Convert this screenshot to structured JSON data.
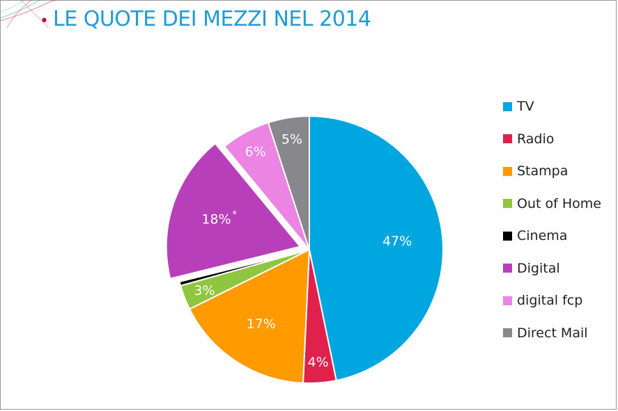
{
  "slide": {
    "title": "LE QUOTE DEI MEZZI NEL 2014"
  },
  "chart_data": {
    "type": "pie",
    "categories": [
      "TV",
      "Radio",
      "Stampa",
      "Out of Home",
      "Cinema",
      "Digital",
      "digital fcp",
      "Direct Mail"
    ],
    "values": [
      47,
      4,
      17,
      3,
      0.5,
      18,
      6,
      5
    ],
    "labels": [
      "47%",
      "4%",
      "17%",
      "3%",
      "",
      "18%",
      "6%",
      "5%"
    ],
    "annotations": {
      "Digital": "*"
    },
    "exploded": [
      "Digital"
    ],
    "colors": [
      "#00a6e0",
      "#e0214c",
      "#ff9a00",
      "#8ec63f",
      "#000000",
      "#b73fba",
      "#ec84e4",
      "#87878c"
    ],
    "legend_position": "right",
    "title": "",
    "start": "top",
    "direction": "clockwise"
  }
}
